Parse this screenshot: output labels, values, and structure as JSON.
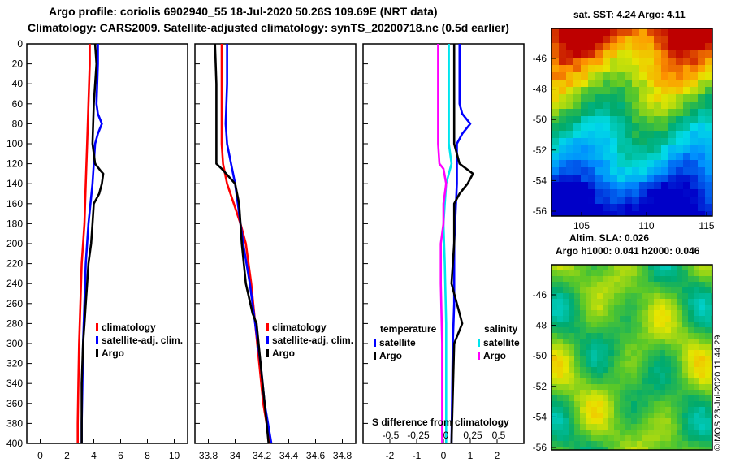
{
  "header": {
    "title_line1": "Argo profile: coriolis 6902940_55 18-Jul-2020 50.26S 109.69E (NRT data)",
    "title_line2": "Climatology: CARS2009. Satellite-adjusted climatology: synTS_20200718.nc (0.5d earlier)"
  },
  "sst_map": {
    "title": "sat. SST: 4.24 Argo: 4.11",
    "lat_ticks": [
      "-46",
      "-48",
      "-50",
      "-52",
      "-54",
      "-56"
    ],
    "lon_ticks": [
      "105",
      "110",
      "115"
    ]
  },
  "sla_map": {
    "title_line1": "Altim. SLA: 0.026",
    "title_line2": "Argo h1000: 0.041 h2000: 0.046",
    "lat_ticks": [
      "-46",
      "-48",
      "-50",
      "-52",
      "-54",
      "-56"
    ]
  },
  "footer": {
    "stamp": "©IMOS 23-Jul-2020 11:44:29"
  },
  "colors": {
    "climatology": "#ff0000",
    "satellite": "#0000ff",
    "argo": "#000000",
    "salinity_sat": "#00e5ee",
    "salinity_argo": "#ff00ff"
  },
  "chart_data": [
    {
      "type": "line",
      "title": "Temperature",
      "xlim": [
        -1,
        11
      ],
      "ylim": [
        400,
        0
      ],
      "x_ticks": [
        0,
        2,
        4,
        6,
        8,
        10
      ],
      "y_ticks": [
        0,
        20,
        40,
        60,
        80,
        100,
        120,
        140,
        160,
        180,
        200,
        220,
        240,
        260,
        280,
        300,
        320,
        340,
        360,
        380,
        400
      ],
      "legend": [
        "climatology",
        "satellite-adj. clim.",
        "Argo"
      ],
      "series": [
        {
          "name": "climatology",
          "depth": [
            0,
            20,
            60,
            100,
            140,
            180,
            220,
            260,
            300,
            340,
            380,
            400
          ],
          "values": [
            3.7,
            3.7,
            3.6,
            3.5,
            3.4,
            3.3,
            3.1,
            3.0,
            2.9,
            2.85,
            2.8,
            2.8
          ]
        },
        {
          "name": "satellite-adj. clim.",
          "depth": [
            0,
            20,
            60,
            70,
            80,
            90,
            100,
            140,
            180,
            220,
            260,
            300,
            340,
            380,
            400
          ],
          "values": [
            4.3,
            4.3,
            4.2,
            4.3,
            4.6,
            4.3,
            4.1,
            3.9,
            3.6,
            3.4,
            3.3,
            3.2,
            3.15,
            3.1,
            3.1
          ]
        },
        {
          "name": "Argo",
          "depth": [
            0,
            20,
            60,
            100,
            120,
            127,
            130,
            140,
            150,
            155,
            160,
            180,
            200,
            220,
            240,
            260,
            280,
            300,
            340,
            380,
            400
          ],
          "values": [
            4.1,
            4.2,
            4.0,
            3.9,
            4.1,
            4.5,
            4.7,
            4.6,
            4.4,
            4.2,
            4.0,
            3.9,
            3.8,
            3.6,
            3.5,
            3.4,
            3.3,
            3.2,
            3.1,
            3.1,
            3.1
          ]
        }
      ]
    },
    {
      "type": "line",
      "title": "Salinity",
      "xlim": [
        33.7,
        34.9
      ],
      "ylim": [
        400,
        0
      ],
      "x_ticks": [
        "33.8",
        "34",
        "34.2",
        "34.4",
        "34.6",
        "34.8"
      ],
      "legend": [
        "climatology",
        "satellite-adj. clim.",
        "Argo"
      ],
      "series": [
        {
          "name": "climatology",
          "depth": [
            0,
            60,
            100,
            120,
            140,
            160,
            180,
            200,
            240,
            280,
            320,
            360,
            400
          ],
          "values": [
            33.9,
            33.9,
            33.9,
            33.91,
            33.94,
            33.99,
            34.04,
            34.08,
            34.12,
            34.15,
            34.18,
            34.21,
            34.26
          ]
        },
        {
          "name": "satellite-adj. clim.",
          "depth": [
            0,
            40,
            80,
            100,
            120,
            140,
            160,
            180,
            200,
            240,
            280,
            320,
            360,
            400
          ],
          "values": [
            33.94,
            33.94,
            33.93,
            33.94,
            33.97,
            34.0,
            34.02,
            34.04,
            34.06,
            34.11,
            34.15,
            34.19,
            34.22,
            34.27
          ]
        },
        {
          "name": "Argo",
          "depth": [
            0,
            40,
            80,
            120,
            125,
            140,
            160,
            180,
            200,
            240,
            270,
            280,
            320,
            360,
            400
          ],
          "values": [
            33.85,
            33.86,
            33.86,
            33.86,
            33.9,
            34.0,
            34.03,
            34.04,
            34.05,
            34.08,
            34.13,
            34.16,
            34.19,
            34.22,
            34.25
          ]
        }
      ]
    },
    {
      "type": "line",
      "title": "S difference from climatology",
      "xlim": [
        -3,
        3
      ],
      "ylim": [
        400,
        0
      ],
      "x_ticks": [
        "-2",
        "-1",
        "0",
        "1",
        "2"
      ],
      "x_ticks_secondary": [
        "-0.5",
        "-0.25",
        "0",
        "0.25",
        "0.5"
      ],
      "legend_groups": [
        {
          "label": "temperature",
          "items": [
            "satellite",
            "Argo"
          ]
        },
        {
          "label": "salinity",
          "items": [
            "satellite",
            "Argo"
          ]
        }
      ],
      "series": [
        {
          "name": "temperature satellite",
          "depth": [
            0,
            60,
            70,
            80,
            90,
            100,
            140,
            200,
            260,
            300,
            400
          ],
          "values": [
            0.6,
            0.6,
            0.7,
            1.0,
            0.7,
            0.5,
            0.5,
            0.4,
            0.4,
            0.35,
            0.3
          ]
        },
        {
          "name": "temperature Argo",
          "depth": [
            0,
            60,
            100,
            120,
            130,
            140,
            150,
            160,
            200,
            240,
            260,
            280,
            300,
            400
          ],
          "values": [
            0.4,
            0.4,
            0.4,
            0.6,
            1.1,
            0.9,
            0.6,
            0.4,
            0.4,
            0.3,
            0.5,
            0.7,
            0.4,
            0.3
          ]
        },
        {
          "name": "salinity satellite",
          "depth": [
            0,
            100,
            120,
            130,
            140,
            180,
            220,
            280,
            340,
            400
          ],
          "values": [
            0.2,
            0.2,
            0.3,
            0.2,
            0.1,
            0.0,
            0.05,
            0.1,
            0.1,
            0.1
          ]
        },
        {
          "name": "salinity Argo",
          "depth": [
            0,
            60,
            100,
            120,
            125,
            140,
            160,
            180,
            200,
            240,
            300,
            340,
            400
          ],
          "values": [
            -0.2,
            -0.2,
            -0.2,
            -0.15,
            0.0,
            0.1,
            0.0,
            0.0,
            -0.1,
            -0.1,
            -0.05,
            -0.05,
            -0.05
          ]
        }
      ]
    }
  ]
}
